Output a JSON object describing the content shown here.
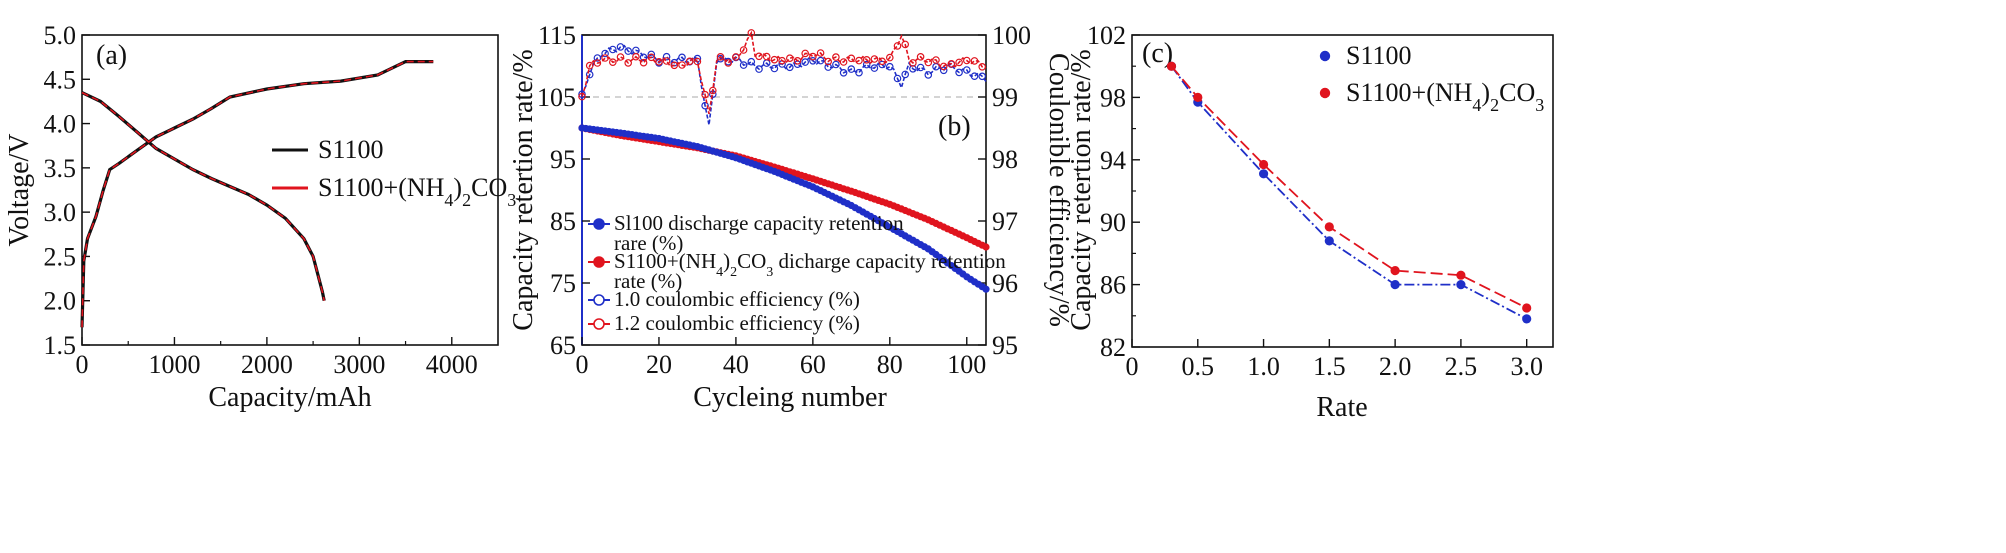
{
  "chart_data": [
    {
      "panel": "(a)",
      "type": "line",
      "xlabel": "Capacity/mAh",
      "ylabel": "Voltage/V",
      "xlim": [
        0,
        4500
      ],
      "ylim": [
        1.5,
        5.0
      ],
      "xticks": [
        "0",
        "1000",
        "2000",
        "3000",
        "4000"
      ],
      "yticks": [
        "1.5",
        "2.0",
        "2.5",
        "3.0",
        "3.5",
        "4.0",
        "4.5",
        "5.0"
      ],
      "legend_position": "middle-right",
      "series": [
        {
          "name": "S1100",
          "color": "#111111",
          "segments": [
            [
              [
                0,
                1.7
              ],
              [
                20,
                2.45
              ],
              [
                60,
                2.7
              ],
              [
                150,
                2.95
              ],
              [
                230,
                3.25
              ],
              [
                300,
                3.48
              ],
              [
                400,
                3.55
              ],
              [
                600,
                3.7
              ],
              [
                800,
                3.85
              ],
              [
                1000,
                3.95
              ],
              [
                1200,
                4.05
              ],
              [
                1400,
                4.17
              ],
              [
                1600,
                4.3
              ],
              [
                2000,
                4.39
              ],
              [
                2400,
                4.45
              ],
              [
                2800,
                4.48
              ],
              [
                3200,
                4.55
              ],
              [
                3500,
                4.7
              ],
              [
                3800,
                4.7
              ]
            ],
            [
              [
                0,
                4.35
              ],
              [
                200,
                4.25
              ],
              [
                400,
                4.08
              ],
              [
                600,
                3.9
              ],
              [
                800,
                3.72
              ],
              [
                1000,
                3.6
              ],
              [
                1200,
                3.48
              ],
              [
                1400,
                3.38
              ],
              [
                1600,
                3.29
              ],
              [
                1800,
                3.2
              ],
              [
                2000,
                3.08
              ],
              [
                2200,
                2.93
              ],
              [
                2400,
                2.7
              ],
              [
                2500,
                2.5
              ],
              [
                2600,
                2.1
              ],
              [
                2620,
                2.0
              ]
            ]
          ]
        },
        {
          "name": "S1100+(NH4)2CO3",
          "color": "#e0141e",
          "segments": [
            [
              [
                0,
                1.7
              ],
              [
                20,
                2.45
              ],
              [
                60,
                2.7
              ],
              [
                150,
                2.95
              ],
              [
                230,
                3.25
              ],
              [
                300,
                3.48
              ],
              [
                400,
                3.55
              ],
              [
                600,
                3.7
              ],
              [
                800,
                3.85
              ],
              [
                1000,
                3.95
              ],
              [
                1200,
                4.05
              ],
              [
                1400,
                4.17
              ],
              [
                1600,
                4.3
              ],
              [
                2000,
                4.39
              ],
              [
                2400,
                4.45
              ],
              [
                2800,
                4.48
              ],
              [
                3200,
                4.55
              ],
              [
                3500,
                4.7
              ],
              [
                3800,
                4.7
              ]
            ],
            [
              [
                0,
                4.35
              ],
              [
                200,
                4.25
              ],
              [
                400,
                4.08
              ],
              [
                600,
                3.9
              ],
              [
                800,
                3.72
              ],
              [
                1000,
                3.6
              ],
              [
                1200,
                3.48
              ],
              [
                1400,
                3.38
              ],
              [
                1600,
                3.29
              ],
              [
                1800,
                3.2
              ],
              [
                2000,
                3.08
              ],
              [
                2200,
                2.93
              ],
              [
                2400,
                2.7
              ],
              [
                2500,
                2.5
              ],
              [
                2600,
                2.1
              ],
              [
                2620,
                2.0
              ]
            ]
          ]
        }
      ]
    },
    {
      "panel": "(b)",
      "type": "scatter",
      "xlabel": "Cycleing number",
      "ylabel": "Capacity retertion rate/%",
      "ylabel_right": "Coulonible efficiency/%",
      "xlim": [
        0,
        105
      ],
      "ylim": [
        65,
        115
      ],
      "ylim_right": [
        95,
        100
      ],
      "xticks": [
        "0",
        "20",
        "40",
        "60",
        "80",
        "100"
      ],
      "yticks": [
        "65",
        "75",
        "85",
        "95",
        "105",
        "115"
      ],
      "yticks_right": [
        "95",
        "96",
        "97",
        "98",
        "99",
        "100"
      ],
      "legend_position": "lower-left",
      "series": [
        {
          "name": "Sl100 discharge capacity retention rare (%)",
          "color": "#1f2fc8",
          "marker": "filled-circle",
          "axis": "left",
          "x": [
            0,
            10,
            20,
            30,
            40,
            50,
            60,
            70,
            80,
            90,
            100,
            105
          ],
          "y": [
            100,
            99.2,
            98.3,
            97,
            95.2,
            93,
            90.5,
            87.5,
            84,
            80.5,
            76,
            74
          ]
        },
        {
          "name": "S1100+(NH4)2CO3 dicharge capacity retention rate (%)",
          "color": "#e0141e",
          "marker": "filled-circle",
          "axis": "left",
          "x": [
            0,
            10,
            20,
            30,
            40,
            50,
            60,
            70,
            80,
            90,
            100,
            105
          ],
          "y": [
            100,
            98.8,
            97.8,
            96.8,
            95.5,
            93.7,
            91.8,
            89.8,
            87.7,
            85.2,
            82.3,
            80.8
          ]
        },
        {
          "name": "1.0 coulombic efficiency (%)",
          "color": "#1f2fc8",
          "marker": "open-circle",
          "axis": "right",
          "x": [
            0,
            2,
            5,
            10,
            15,
            20,
            25,
            30,
            33,
            35,
            40,
            45,
            50,
            55,
            60,
            65,
            70,
            75,
            80,
            83,
            85,
            90,
            95,
            100,
            105
          ],
          "y": [
            99.0,
            99.4,
            99.7,
            99.8,
            99.7,
            99.6,
            99.6,
            99.6,
            98.5,
            99.6,
            99.6,
            99.5,
            99.5,
            99.5,
            99.6,
            99.5,
            99.4,
            99.5,
            99.5,
            99.2,
            99.5,
            99.4,
            99.5,
            99.4,
            99.3
          ]
        },
        {
          "name": "1.2 coulombic efficiency (%)",
          "color": "#e0141e",
          "marker": "open-circle",
          "axis": "right",
          "x": [
            0,
            2,
            5,
            10,
            15,
            20,
            25,
            30,
            33,
            35,
            40,
            44,
            45,
            50,
            55,
            60,
            65,
            70,
            75,
            80,
            83,
            85,
            90,
            95,
            100,
            105
          ],
          "y": [
            99.0,
            99.5,
            99.6,
            99.6,
            99.6,
            99.6,
            99.5,
            99.6,
            98.7,
            99.6,
            99.6,
            100.0,
            99.7,
            99.6,
            99.6,
            99.7,
            99.6,
            99.6,
            99.6,
            99.6,
            100.0,
            99.6,
            99.6,
            99.5,
            99.6,
            99.5
          ]
        }
      ]
    },
    {
      "panel": "(c)",
      "type": "scatter",
      "xlabel": "Rate",
      "ylabel": "Capacity retertion rate/%",
      "xlim": [
        0,
        3.2
      ],
      "ylim": [
        82,
        102
      ],
      "xticks": [
        "0",
        "0.5",
        "1.0",
        "1.5",
        "2.0",
        "2.5",
        "3.0"
      ],
      "yticks": [
        "82",
        "86",
        "90",
        "94",
        "98",
        "102"
      ],
      "legend_position": "top-right",
      "series": [
        {
          "name": "S1100",
          "color": "#1f2fc8",
          "marker": "filled-circle",
          "x": [
            0.3,
            0.5,
            1.0,
            1.5,
            2.0,
            2.5,
            3.0
          ],
          "y": [
            100.0,
            97.7,
            93.1,
            88.8,
            86.0,
            86.0,
            83.8
          ]
        },
        {
          "name": "S1100+(NH4)2CO3",
          "color": "#e0141e",
          "marker": "filled-circle",
          "x": [
            0.3,
            0.5,
            1.0,
            1.5,
            2.0,
            2.5,
            3.0
          ],
          "y": [
            100.0,
            98.0,
            93.7,
            89.7,
            86.9,
            86.6,
            84.5
          ]
        }
      ]
    }
  ]
}
